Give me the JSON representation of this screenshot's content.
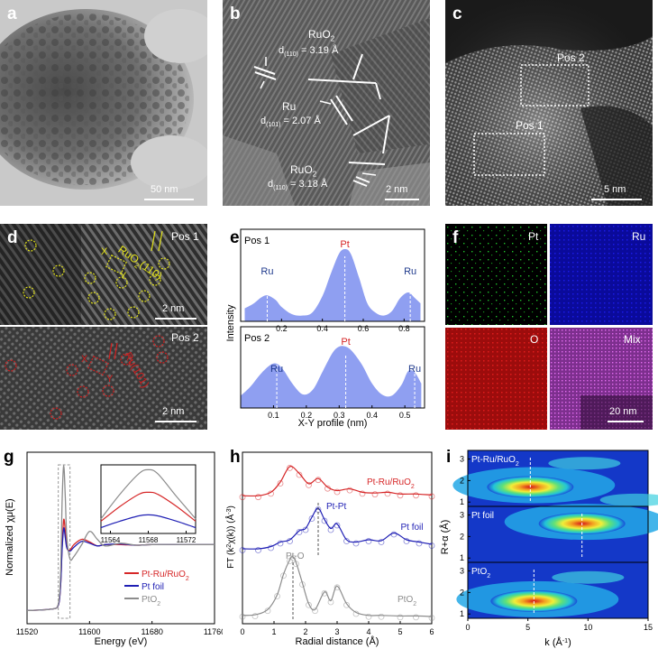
{
  "panels": {
    "a": {
      "label": "a",
      "scalebar": "50 nm"
    },
    "b": {
      "label": "b",
      "scalebar": "2 nm",
      "ann1_name": "RuO",
      "ann1_sub": "2",
      "ann1_d": "d",
      "ann1_dsub": "(110)",
      "ann1_val": " = 3.19 Å",
      "ann2_name": "Ru",
      "ann2_d": "d",
      "ann2_dsub": "(101)",
      "ann2_val": " = 2.07 Å",
      "ann3_name": "RuO",
      "ann3_sub": "2",
      "ann3_d": "d",
      "ann3_dsub": "(110)",
      "ann3_val": " = 3.18 Å"
    },
    "c": {
      "label": "c",
      "scalebar": "5 nm",
      "pos1": "Pos 1",
      "pos2": "Pos 2"
    },
    "d": {
      "label": "d",
      "pos1": "Pos 1",
      "pos2": "Pos 2",
      "scalebar1": "2 nm",
      "scalebar2": "2 nm",
      "ruo2": "RuO",
      "ruo2_sub": "2",
      "ruo2_plane": "(110)",
      "ru": "Ru",
      "ru_plane": "(101)",
      "x": "X",
      "y": "Y"
    },
    "e": {
      "label": "e",
      "xlabel": "X-Y profile (nm)",
      "ylabel": "Intensity",
      "ru": "Ru",
      "pt": "Pt"
    },
    "f": {
      "label": "f",
      "tiles": [
        "Pt",
        "Ru",
        "O",
        "Mix"
      ],
      "scalebar": "20 nm"
    },
    "g": {
      "label": "g",
      "xlabel": "Energy (eV)",
      "ylabel": "Normalized χμ(E)",
      "legend": [
        {
          "name": "Pt-Ru/RuO",
          "sub": "2",
          "color": "#d62728"
        },
        {
          "name": "Pt foil",
          "sub": "",
          "color": "#1f1fb4"
        },
        {
          "name": "PtO",
          "sub": "2",
          "color": "#8c8c8c"
        }
      ]
    },
    "h": {
      "label": "h",
      "xlabel": "Radial distance (Å)",
      "ylabel": "FT (k",
      "ylabel_sup": "2",
      "ylabel_mid": "χ(k)) (Å",
      "ylabel_sup2": "-3",
      "ylabel_end": ")",
      "curve_labels": {
        "ptru": "Pt-Ru/RuO",
        "ptru_sub": "2",
        "ptfoil": "Pt foil",
        "pto2": "PtO",
        "pto2_sub": "2",
        "ptpt": "Pt-Pt",
        "pto": "Pt-O"
      }
    },
    "i": {
      "label": "i",
      "xlabel": "k (Å",
      "xlabel_sup": "-1",
      "xlabel_end": ")",
      "ylabel": "R+α (Å)",
      "maps": [
        {
          "name": "Pt-Ru/RuO",
          "sub": "2"
        },
        {
          "name": "Pt foil",
          "sub": ""
        },
        {
          "name": "PtO",
          "sub": "2"
        }
      ]
    }
  },
  "chart_data": [
    {
      "type": "line",
      "id": "e-pos1",
      "title": "Pos 1",
      "x": [
        0.02,
        0.06,
        0.1,
        0.13,
        0.17,
        0.2,
        0.25,
        0.3,
        0.35,
        0.4,
        0.44,
        0.48,
        0.51,
        0.54,
        0.58,
        0.62,
        0.66,
        0.7,
        0.74,
        0.78,
        0.82,
        0.85,
        0.88
      ],
      "y": [
        0.18,
        0.24,
        0.33,
        0.36,
        0.3,
        0.2,
        0.1,
        0.08,
        0.12,
        0.35,
        0.65,
        0.93,
        1.0,
        0.93,
        0.6,
        0.25,
        0.12,
        0.08,
        0.14,
        0.32,
        0.4,
        0.33,
        0.25
      ],
      "xlim": [
        0.0,
        0.9
      ],
      "xticks": [
        0.2,
        0.4,
        0.6,
        0.8
      ],
      "peaks": [
        {
          "label": "Ru",
          "x": 0.13
        },
        {
          "label": "Pt",
          "x": 0.51
        },
        {
          "label": "Ru",
          "x": 0.83
        }
      ]
    },
    {
      "type": "line",
      "id": "e-pos2",
      "title": "Pos 2",
      "x": [
        0.0,
        0.03,
        0.06,
        0.09,
        0.11,
        0.13,
        0.16,
        0.19,
        0.22,
        0.25,
        0.28,
        0.3,
        0.32,
        0.34,
        0.37,
        0.4,
        0.43,
        0.46,
        0.49,
        0.51,
        0.53,
        0.55
      ],
      "y": [
        0.2,
        0.35,
        0.55,
        0.7,
        0.72,
        0.62,
        0.38,
        0.22,
        0.3,
        0.6,
        0.9,
        1.0,
        1.0,
        0.92,
        0.7,
        0.4,
        0.22,
        0.2,
        0.38,
        0.6,
        0.58,
        0.4
      ],
      "xlim": [
        0.0,
        0.56
      ],
      "xticks": [
        0.1,
        0.2,
        0.3,
        0.4,
        0.5
      ],
      "peaks": [
        {
          "label": "Ru",
          "x": 0.11
        },
        {
          "label": "Pt",
          "x": 0.32
        },
        {
          "label": "Ru",
          "x": 0.53
        }
      ]
    },
    {
      "type": "line",
      "id": "g-xanes",
      "xlabel": "Energy (eV)",
      "ylabel": "Normalized χμ(E)",
      "xlim": [
        11520,
        11760
      ],
      "xticks": [
        11520,
        11600,
        11680,
        11760
      ],
      "ylim": [
        -0.2,
        2.4
      ],
      "series": [
        {
          "name": "Pt-Ru/RuO2",
          "color": "#d62728",
          "x": [
            11520,
            11550,
            11560,
            11563,
            11565,
            11567,
            11569,
            11571,
            11575,
            11580,
            11590,
            11600,
            11610,
            11620,
            11640,
            11660,
            11680,
            11720,
            11760
          ],
          "y": [
            0.0,
            0.02,
            0.08,
            0.4,
            1.0,
            1.38,
            1.2,
            0.95,
            0.92,
            1.0,
            1.08,
            1.04,
            0.98,
            1.0,
            1.0,
            0.99,
            1.0,
            1.0,
            1.0
          ]
        },
        {
          "name": "Pt foil",
          "color": "#1f1fb4",
          "x": [
            11520,
            11550,
            11560,
            11563,
            11565,
            11567,
            11569,
            11571,
            11575,
            11580,
            11590,
            11600,
            11610,
            11620,
            11640,
            11660,
            11680,
            11720,
            11760
          ],
          "y": [
            0.0,
            0.02,
            0.08,
            0.4,
            0.95,
            1.25,
            1.1,
            0.95,
            0.9,
            0.96,
            1.05,
            1.02,
            0.98,
            1.0,
            1.01,
            0.99,
            1.0,
            1.0,
            1.0
          ]
        },
        {
          "name": "PtO2",
          "color": "#8c8c8c",
          "x": [
            11520,
            11550,
            11560,
            11563,
            11565,
            11567,
            11569,
            11571,
            11575,
            11580,
            11590,
            11600,
            11610,
            11620,
            11640,
            11660,
            11680,
            11720,
            11760
          ],
          "y": [
            0.0,
            0.02,
            0.1,
            0.6,
            1.7,
            2.2,
            1.7,
            1.1,
            0.78,
            0.82,
            1.0,
            1.2,
            1.08,
            0.98,
            1.02,
            0.99,
            1.0,
            1.0,
            1.0
          ]
        }
      ],
      "inset": {
        "xlim": [
          11563,
          11573
        ],
        "xticks": [
          11564,
          11568,
          11572
        ],
        "series": [
          {
            "name": "Pt-Ru/RuO2",
            "x": [
              11563,
              11565,
              11567,
              11568,
              11569,
              11571,
              11573
            ],
            "y": [
              0.25,
              0.55,
              0.8,
              0.84,
              0.8,
              0.55,
              0.25
            ]
          },
          {
            "name": "Pt foil",
            "x": [
              11563,
              11565,
              11567,
              11568,
              11569,
              11571,
              11573
            ],
            "y": [
              0.12,
              0.25,
              0.36,
              0.38,
              0.36,
              0.25,
              0.12
            ]
          },
          {
            "name": "PtO2",
            "x": [
              11563,
              11565,
              11567,
              11568,
              11569,
              11571,
              11573
            ],
            "y": [
              0.3,
              0.8,
              1.22,
              1.3,
              1.22,
              0.75,
              0.3
            ]
          }
        ]
      }
    },
    {
      "type": "line",
      "id": "h-ft-exafs",
      "xlabel": "Radial distance (Å)",
      "xlim": [
        0,
        6
      ],
      "xticks": [
        0,
        1,
        2,
        3,
        4,
        5,
        6
      ],
      "series": [
        {
          "name": "Pt-Ru/RuO2",
          "color": "#d62728",
          "x": [
            0,
            0.5,
            0.9,
            1.2,
            1.5,
            1.8,
            2.1,
            2.4,
            2.7,
            3.0,
            3.4,
            3.8,
            4.2,
            4.6,
            5.0,
            5.5,
            6.0
          ],
          "y": [
            0.1,
            0.1,
            0.2,
            0.5,
            0.95,
            0.75,
            0.45,
            0.6,
            0.35,
            0.25,
            0.3,
            0.2,
            0.18,
            0.2,
            0.15,
            0.15,
            0.12
          ]
        },
        {
          "name": "Pt foil",
          "color": "#1f1fb4",
          "x": [
            0,
            0.5,
            0.9,
            1.2,
            1.5,
            1.8,
            2.0,
            2.2,
            2.4,
            2.6,
            2.8,
            3.0,
            3.3,
            3.6,
            4.0,
            4.4,
            4.8,
            5.2,
            5.6,
            6.0
          ],
          "y": [
            0.1,
            0.1,
            0.15,
            0.25,
            0.3,
            0.5,
            0.55,
            0.8,
            1.0,
            0.75,
            0.55,
            0.65,
            0.3,
            0.25,
            0.3,
            0.28,
            0.45,
            0.3,
            0.25,
            0.2
          ]
        },
        {
          "name": "PtO2",
          "color": "#8c8c8c",
          "x": [
            0,
            0.4,
            0.8,
            1.1,
            1.3,
            1.5,
            1.6,
            1.7,
            1.9,
            2.1,
            2.3,
            2.6,
            2.8,
            3.0,
            3.3,
            3.6,
            4.0,
            4.4,
            5.0,
            5.5,
            6.0
          ],
          "y": [
            0.05,
            0.06,
            0.15,
            0.4,
            0.75,
            1.0,
            1.05,
            0.95,
            0.6,
            0.25,
            0.15,
            0.45,
            0.3,
            0.55,
            0.25,
            0.1,
            0.05,
            0.05,
            0.04,
            0.04,
            0.03
          ]
        }
      ],
      "annotations": [
        {
          "label": "Pt-Pt",
          "x": 2.4
        },
        {
          "label": "Pt-O",
          "x": 1.6
        }
      ]
    },
    {
      "type": "heatmap",
      "id": "i-wt-exafs",
      "xlabel": "k (Å-1)",
      "ylabel": "R+α (Å)",
      "xlim": [
        0,
        15
      ],
      "xticks": [
        0,
        5,
        10,
        15
      ],
      "ylim": [
        0.8,
        3.4
      ],
      "yticks": [
        1,
        2,
        3
      ],
      "maps": [
        {
          "name": "Pt-Ru/RuO2",
          "max_k": 5.2,
          "max_r": 1.7
        },
        {
          "name": "Pt foil",
          "max_k": 9.5,
          "max_r": 2.6
        },
        {
          "name": "PtO2",
          "max_k": 5.5,
          "max_r": 1.6
        }
      ]
    }
  ]
}
